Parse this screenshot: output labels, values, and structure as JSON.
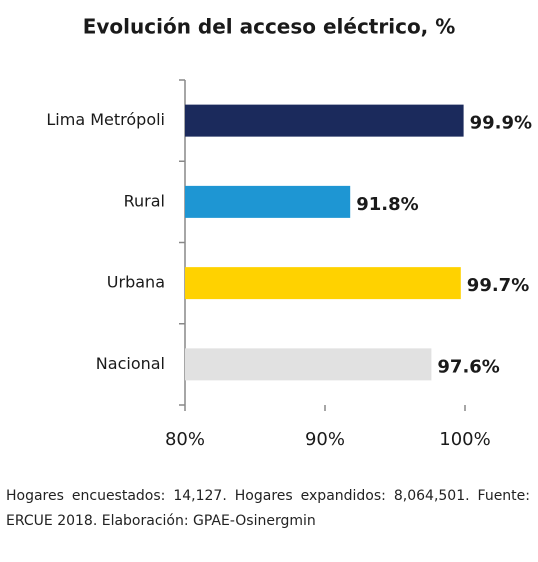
{
  "chart_data": {
    "type": "barh",
    "title": "Evolución del acceso eléctrico, %",
    "categories": [
      "Lima Metrópoli",
      "Rural",
      "Urbana",
      "Nacional"
    ],
    "values": [
      99.9,
      91.8,
      99.7,
      97.6
    ],
    "value_labels": [
      "99.9%",
      "91.8%",
      "99.7%",
      "97.6%"
    ],
    "colors": [
      "#1b2a5c",
      "#1e96d3",
      "#ffd200",
      "#e1e1e1"
    ],
    "xlim": [
      80,
      100
    ],
    "xticks": [
      {
        "value": 80,
        "label": "80%"
      },
      {
        "value": 90,
        "label": "90%"
      },
      {
        "value": 100,
        "label": "100%"
      }
    ]
  },
  "footnote": "Hogares encuestados: 14,127. Hogares expandidos: 8,064,501. Fuente: ERCUE 2018. Elaboración: GPAE-Osinergmin"
}
